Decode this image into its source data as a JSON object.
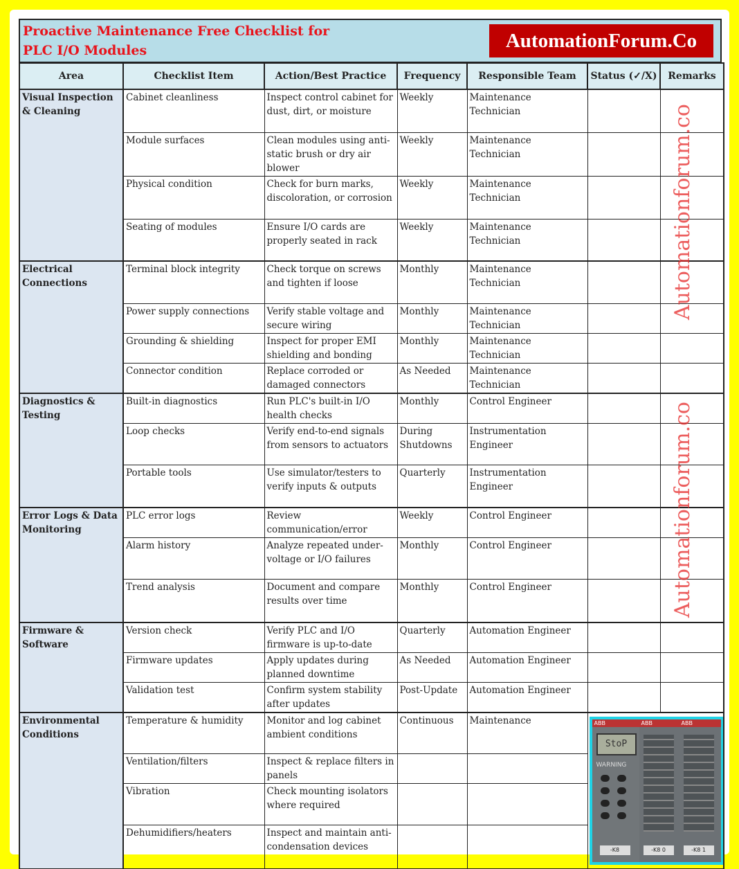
{
  "title": {
    "line1": "Proactive Maintenance Free Checklist for",
    "line2": "PLC I/O Modules",
    "brand": "AutomationForum.Co"
  },
  "columns": [
    "Area",
    "Checklist Item",
    "Action/Best Practice",
    "Frequency",
    "Responsible Team",
    "Status (✓/X)",
    "Remarks"
  ],
  "sections": [
    {
      "area": "Visual Inspection & Cleaning",
      "rows": [
        {
          "item": "Cabinet cleanliness",
          "action": "Inspect control cabinet for dust, dirt, or moisture",
          "frequency": "Weekly",
          "team": "Maintenance Technician"
        },
        {
          "item": "Module surfaces",
          "action": "Clean modules using anti-static brush or dry air blower",
          "frequency": "Weekly",
          "team": "Maintenance Technician"
        },
        {
          "item": "Physical condition",
          "action": "Check for burn marks, discoloration, or corrosion",
          "frequency": "Weekly",
          "team": "Maintenance Technician"
        },
        {
          "item": "Seating of modules",
          "action": "Ensure I/O cards are properly seated in rack",
          "frequency": "Weekly",
          "team": "Maintenance Technician"
        }
      ]
    },
    {
      "area": "Electrical Connections",
      "rows": [
        {
          "item": "Terminal block integrity",
          "action": "Check torque on screws and tighten if loose",
          "frequency": "Monthly",
          "team": "Maintenance Technician"
        },
        {
          "item": "Power supply connections",
          "action": "Verify stable voltage and secure wiring",
          "frequency": "Monthly",
          "team": "Maintenance Technician"
        },
        {
          "item": "Grounding & shielding",
          "action": "Inspect for proper EMI shielding and bonding",
          "frequency": "Monthly",
          "team": "Maintenance Technician"
        },
        {
          "item": "Connector condition",
          "action": "Replace corroded or damaged connectors",
          "frequency": "As Needed",
          "team": "Maintenance Technician"
        }
      ]
    },
    {
      "area": "Diagnostics & Testing",
      "rows": [
        {
          "item": "Built-in diagnostics",
          "action": "Run PLC's built-in I/O health checks",
          "frequency": "Monthly",
          "team": "Control Engineer"
        },
        {
          "item": "Loop checks",
          "action": "Verify end-to-end signals from sensors to actuators",
          "frequency": "During Shutdowns",
          "team": "Instrumentation Engineer"
        },
        {
          "item": "Portable tools",
          "action": "Use simulator/testers to verify inputs & outputs",
          "frequency": "Quarterly",
          "team": "Instrumentation Engineer"
        }
      ]
    },
    {
      "area": "Error Logs & Data Monitoring",
      "rows": [
        {
          "item": "PLC error logs",
          "action": "Review communication/error",
          "frequency": "Weekly",
          "team": "Control Engineer"
        },
        {
          "item": "Alarm history",
          "action": "Analyze repeated under-voltage or I/O failures",
          "frequency": "Monthly",
          "team": "Control Engineer"
        },
        {
          "item": "Trend analysis",
          "action": "Document and compare results over time",
          "frequency": "Monthly",
          "team": "Control Engineer"
        }
      ]
    },
    {
      "area": "Firmware & Software",
      "rows": [
        {
          "item": "Version check",
          "action": "Verify PLC and I/O firmware is up-to-date",
          "frequency": "Quarterly",
          "team": "Automation Engineer"
        },
        {
          "item": "Firmware updates",
          "action": "Apply updates during planned downtime",
          "frequency": "As Needed",
          "team": "Automation Engineer"
        },
        {
          "item": "Validation test",
          "action": "Confirm system stability after updates",
          "frequency": "Post-Update",
          "team": "Automation Engineer"
        }
      ]
    },
    {
      "area": "Environmental Conditions",
      "rows": [
        {
          "item": "Temperature & humidity",
          "action": "Monitor and log cabinet ambient conditions",
          "frequency": "Continuous",
          "team": "Maintenance"
        },
        {
          "item": "Ventilation/filters",
          "action": "Inspect & replace filters in panels",
          "frequency": "",
          "team": ""
        },
        {
          "item": "Vibration",
          "action": "Check mounting isolators where required",
          "frequency": "",
          "team": ""
        },
        {
          "item": "Dehumidifiers/heaters",
          "action": "Inspect and maintain anti-condensation devices",
          "frequency": "",
          "team": ""
        }
      ]
    }
  ],
  "watermark": "Automationforum.co",
  "photo": {
    "lcd": "StoP",
    "warning": "WARNING",
    "label1": "-K8",
    "label2": "-K8 0",
    "label3": "-K8 1",
    "brand": "ABB"
  },
  "colors": {
    "frame": "#ffff00",
    "title": "#e8141c",
    "brand_bg": "#c00000",
    "header_bg": "#dbeef3",
    "area_bg": "#dce6f1",
    "photo_border": "#1fd3e6"
  }
}
